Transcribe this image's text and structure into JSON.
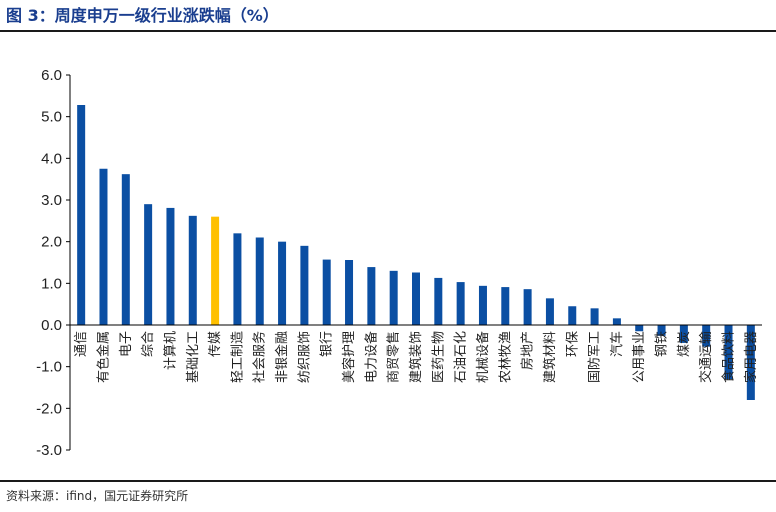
{
  "figure_label": "图 3：",
  "title": "周度申万一级行业涨跌幅（%）",
  "source": "资料来源：ifind，国元证券研究所",
  "colors": {
    "bar": "#0b4fa3",
    "highlight": "#ffc000",
    "title": "#1a3e8f"
  },
  "chart_data": {
    "type": "bar",
    "categories": [
      "通信",
      "有色金属",
      "电子",
      "综合",
      "计算机",
      "基础化工",
      "传媒",
      "轻工制造",
      "社会服务",
      "非银金融",
      "纺织服饰",
      "银行",
      "美容护理",
      "电力设备",
      "商贸零售",
      "建筑装饰",
      "医药生物",
      "石油石化",
      "机械设备",
      "农林牧渔",
      "房地产",
      "建筑材料",
      "环保",
      "国防军工",
      "汽车",
      "公用事业",
      "钢铁",
      "煤炭",
      "交通运输",
      "食品饮料",
      "家用电器"
    ],
    "values": [
      5.28,
      3.75,
      3.62,
      2.9,
      2.81,
      2.62,
      2.6,
      2.2,
      2.1,
      2.0,
      1.9,
      1.57,
      1.56,
      1.39,
      1.3,
      1.26,
      1.13,
      1.03,
      0.94,
      0.91,
      0.86,
      0.64,
      0.45,
      0.4,
      0.16,
      -0.15,
      -0.26,
      -0.43,
      -0.52,
      -1.3,
      -1.8
    ],
    "highlight_category": "传媒",
    "yticks": [
      "6.0",
      "5.0",
      "4.0",
      "3.0",
      "2.0",
      "1.0",
      "0.0",
      "-1.0",
      "-2.0",
      "-3.0"
    ],
    "ylim": [
      -3,
      6
    ],
    "grid": false
  }
}
